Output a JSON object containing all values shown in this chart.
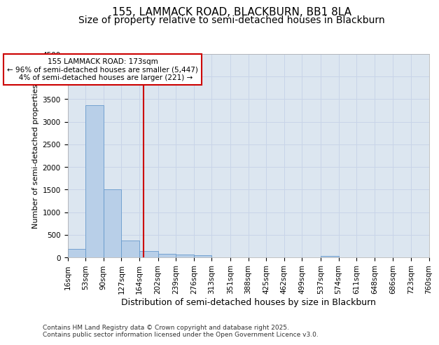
{
  "title1": "155, LAMMACK ROAD, BLACKBURN, BB1 8LA",
  "title2": "Size of property relative to semi-detached houses in Blackburn",
  "xlabel": "Distribution of semi-detached houses by size in Blackburn",
  "ylabel": "Number of semi-detached properties",
  "bin_edges": [
    16,
    53,
    90,
    127,
    164,
    202,
    239,
    276,
    313,
    351,
    388,
    425,
    462,
    499,
    537,
    574,
    611,
    648,
    686,
    723,
    760
  ],
  "bar_heights": [
    190,
    3370,
    1500,
    370,
    140,
    80,
    55,
    40,
    0,
    0,
    0,
    0,
    0,
    0,
    30,
    0,
    0,
    0,
    0,
    0
  ],
  "bar_color": "#b8cfe8",
  "bar_edgecolor": "#6699cc",
  "grid_color": "#c8d4e8",
  "background_color": "#dce6f0",
  "vline_x": 173,
  "vline_color": "#cc0000",
  "annotation_text": "155 LAMMACK ROAD: 173sqm\n← 96% of semi-detached houses are smaller (5,447)\n   4% of semi-detached houses are larger (221) →",
  "annotation_box_color": "#ffffff",
  "annotation_box_edgecolor": "#cc0000",
  "ylim": [
    0,
    4500
  ],
  "yticks": [
    0,
    500,
    1000,
    1500,
    2000,
    2500,
    3000,
    3500,
    4000,
    4500
  ],
  "tick_labels": [
    "16sqm",
    "53sqm",
    "90sqm",
    "127sqm",
    "164sqm",
    "202sqm",
    "239sqm",
    "276sqm",
    "313sqm",
    "351sqm",
    "388sqm",
    "425sqm",
    "462sqm",
    "499sqm",
    "537sqm",
    "574sqm",
    "611sqm",
    "648sqm",
    "686sqm",
    "723sqm",
    "760sqm"
  ],
  "footer_text": "Contains HM Land Registry data © Crown copyright and database right 2025.\nContains public sector information licensed under the Open Government Licence v3.0.",
  "title1_fontsize": 11,
  "title2_fontsize": 10,
  "xlabel_fontsize": 9,
  "ylabel_fontsize": 8,
  "tick_fontsize": 7.5,
  "footer_fontsize": 6.5
}
